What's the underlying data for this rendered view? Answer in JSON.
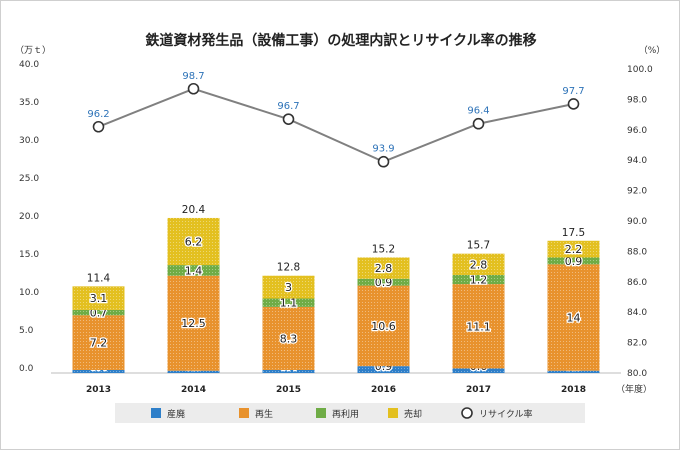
{
  "chart_data": {
    "type": "bar",
    "title": "鉄道資材発生品（設備工事）の処理内訳とリサイクル率の推移",
    "left_unit": "（万ｔ）",
    "right_unit": "（%）",
    "x_unit": "（年度）",
    "categories": [
      "2013",
      "2014",
      "2015",
      "2016",
      "2017",
      "2018"
    ],
    "ylim": [
      0,
      40
    ],
    "yticks": [
      "0.0",
      "5.0",
      "10.0",
      "15.0",
      "20.0",
      "25.0",
      "30.0",
      "35.0",
      "40.0"
    ],
    "y2lim": [
      80,
      100
    ],
    "y2ticks": [
      "80.0",
      "82.0",
      "84.0",
      "86.0",
      "88.0",
      "90.0",
      "92.0",
      "94.0",
      "96.0",
      "98.0",
      "100.0"
    ],
    "series": [
      {
        "name": "産廃",
        "color": "#2e7fc9",
        "values": [
          0.4,
          0.3,
          0.4,
          0.9,
          0.6,
          0.3
        ]
      },
      {
        "name": "再生",
        "color": "#e8922d",
        "values": [
          7.2,
          12.5,
          8.3,
          10.6,
          11.1,
          14.0
        ]
      },
      {
        "name": "再利用",
        "color": "#6fac46",
        "values": [
          0.7,
          1.4,
          1.1,
          0.9,
          1.2,
          0.9
        ]
      },
      {
        "name": "売却",
        "color": "#e3c020",
        "values": [
          3.1,
          6.2,
          3.0,
          2.8,
          2.8,
          2.2
        ]
      }
    ],
    "totals": [
      "11.4",
      "20.4",
      "12.8",
      "15.2",
      "15.7",
      "17.5"
    ],
    "line": {
      "name": "リサイクル率",
      "color": "#808080",
      "values": [
        96.2,
        98.7,
        96.7,
        93.9,
        96.4,
        97.7
      ]
    },
    "legend_position": "bottom"
  }
}
